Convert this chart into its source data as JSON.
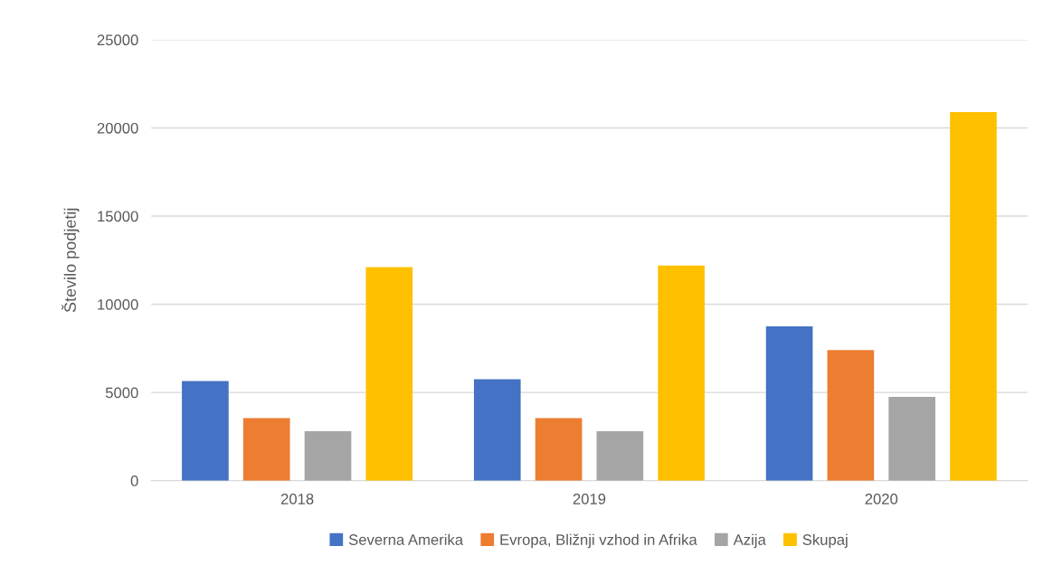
{
  "chart_data": {
    "type": "bar",
    "ylabel": "Število podjetij",
    "categories": [
      "2018",
      "2019",
      "2020"
    ],
    "series": [
      {
        "name": "Severna Amerika",
        "color": "#4472c4",
        "values": [
          5650,
          5750,
          8750
        ]
      },
      {
        "name": "Evropa, Bližnji vzhod in Afrika",
        "color": "#ed7d31",
        "values": [
          3550,
          3550,
          7400
        ]
      },
      {
        "name": "Azija",
        "color": "#a5a5a5",
        "values": [
          2800,
          2800,
          4750
        ]
      },
      {
        "name": "Skupaj",
        "color": "#ffc000",
        "values": [
          12100,
          12200,
          20900
        ]
      }
    ],
    "ylim": [
      0,
      25000
    ],
    "yticks": [
      0,
      5000,
      10000,
      15000,
      20000,
      25000
    ],
    "grid": "y",
    "legend": "bottom"
  }
}
